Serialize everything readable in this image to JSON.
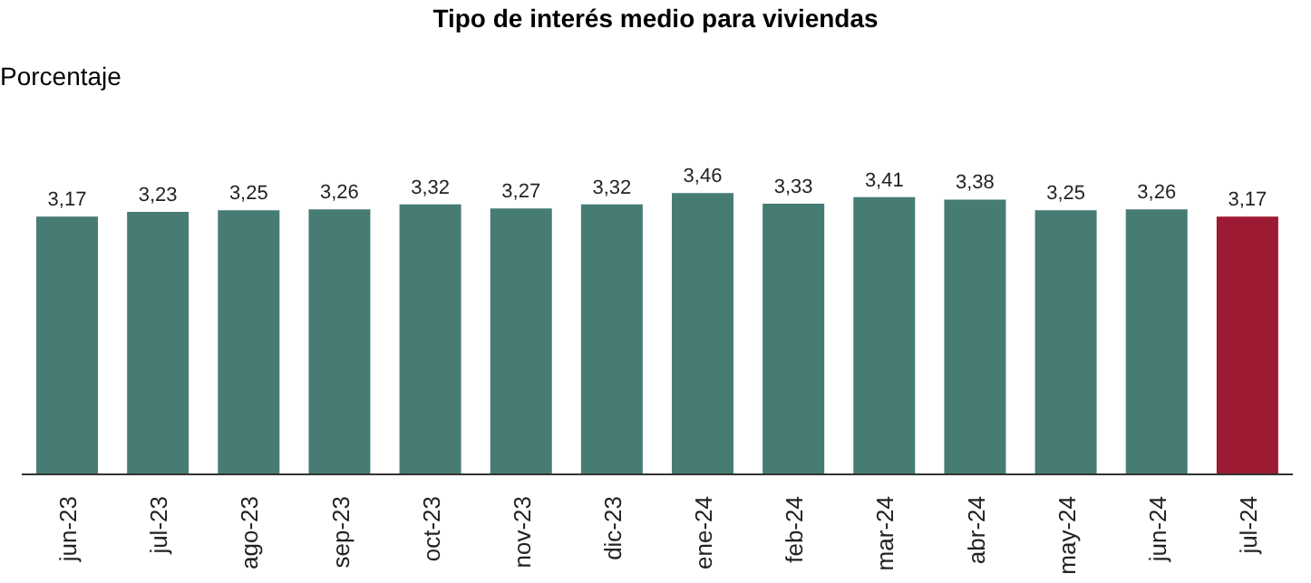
{
  "chart_data": {
    "type": "bar",
    "title": "Tipo de interés medio para viviendas",
    "ylabel": "Porcentaje",
    "categories": [
      "jun-23",
      "jul-23",
      "ago-23",
      "sep-23",
      "oct-23",
      "nov-23",
      "dic-23",
      "ene-24",
      "feb-24",
      "mar-24",
      "abr-24",
      "may-24",
      "jun-24",
      "jul-24"
    ],
    "values": [
      3.17,
      3.23,
      3.25,
      3.26,
      3.32,
      3.27,
      3.32,
      3.46,
      3.33,
      3.41,
      3.38,
      3.25,
      3.26,
      3.17
    ],
    "value_labels": [
      "3,17",
      "3,23",
      "3,25",
      "3,26",
      "3,32",
      "3,27",
      "3,32",
      "3,46",
      "3,33",
      "3,41",
      "3,38",
      "3,25",
      "3,26",
      "3,17"
    ],
    "colors": [
      "#477c74",
      "#477c74",
      "#477c74",
      "#477c74",
      "#477c74",
      "#477c74",
      "#477c74",
      "#477c74",
      "#477c74",
      "#477c74",
      "#477c74",
      "#477c74",
      "#477c74",
      "#9c1a32"
    ],
    "tick_labels": "x"
  }
}
